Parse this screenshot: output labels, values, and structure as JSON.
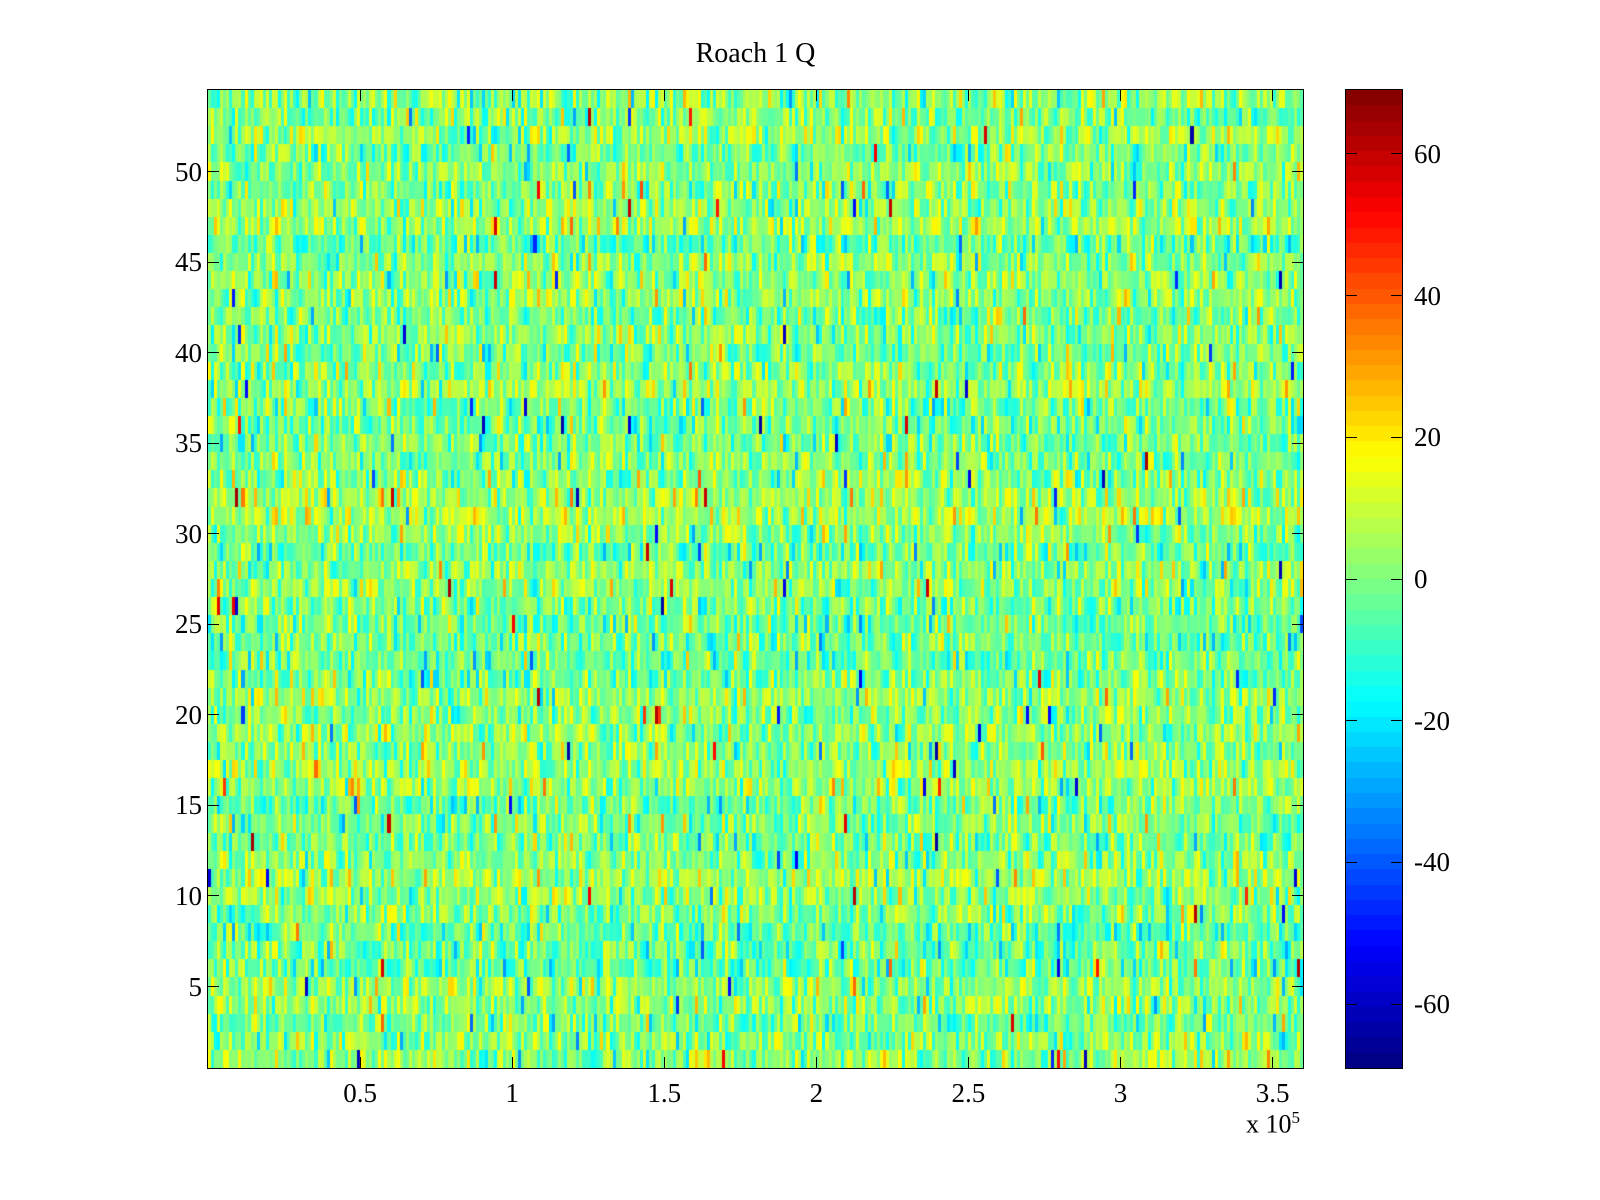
{
  "chart_data": {
    "type": "heatmap",
    "title": "Roach 1 Q",
    "xlabel": "",
    "ylabel": "",
    "grid": false,
    "legend": false,
    "background_color": "#ffffff",
    "axis_color": "#000000",
    "x_axis": {
      "min_value": 0,
      "max_value": 360000,
      "tick_values": [
        50000,
        100000,
        150000,
        200000,
        250000,
        300000,
        350000
      ],
      "tick_labels": [
        "0.5",
        "1",
        "1.5",
        "2",
        "2.5",
        "3",
        "3.5"
      ],
      "exponent_base": "x 10",
      "exponent_power": "5"
    },
    "y_axis": {
      "min_value": 0.5,
      "max_value": 54.5,
      "tick_values": [
        5,
        10,
        15,
        20,
        25,
        30,
        35,
        40,
        45,
        50
      ],
      "tick_labels": [
        "5",
        "10",
        "15",
        "20",
        "25",
        "30",
        "35",
        "40",
        "45",
        "50"
      ]
    },
    "colorbar": {
      "min_value": -69,
      "max_value": 69,
      "tick_values": [
        60,
        40,
        20,
        0,
        -20,
        -40,
        -60
      ],
      "tick_labels": [
        "60",
        "40",
        "20",
        "0",
        "-20",
        "-40",
        "-60"
      ],
      "colormap": "jet",
      "levels": 64,
      "colormap_stops": [
        "#00008F",
        "#0000FF",
        "#00FFFF",
        "#80FF80",
        "#FFFF00",
        "#FF0000",
        "#800000"
      ]
    },
    "heatmap": {
      "rows": 54,
      "cols": 360,
      "noise_mean": 0,
      "noise_std": 10,
      "row_offset_std": 2.5,
      "outlier_probability": 0.008,
      "outlier_min_abs": 28,
      "outlier_max_abs": 64,
      "seed": 1337
    }
  }
}
